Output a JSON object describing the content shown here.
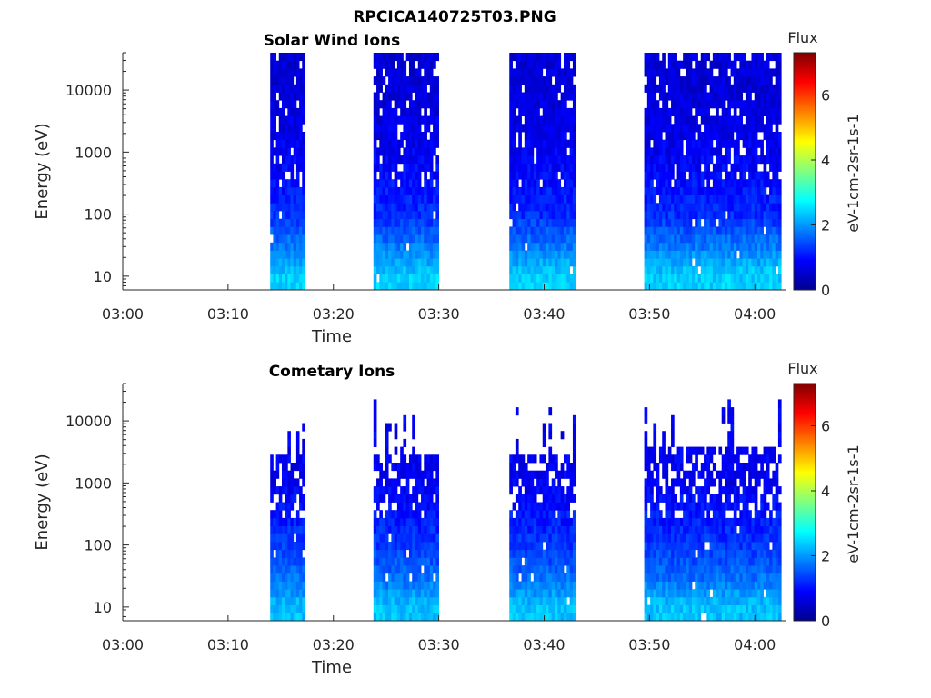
{
  "figure": {
    "title": "RPCICA140725T03.PNG"
  },
  "colors": {
    "jet_stops": [
      "#00008f",
      "#0000ff",
      "#0080ff",
      "#00ffff",
      "#80ff80",
      "#ffff00",
      "#ff8000",
      "#ff0000",
      "#800000"
    ],
    "axis": "#262626",
    "background": "#ffffff"
  },
  "chart_data": [
    {
      "type": "heatmap",
      "title": "Solar Wind Ions",
      "xlabel": "Time",
      "ylabel": "Energy (eV)",
      "x_ticks": [
        "03:00",
        "03:10",
        "03:20",
        "03:30",
        "03:40",
        "03:50",
        "04:00"
      ],
      "xlim_minutes_after_0300": [
        0,
        63
      ],
      "y_scale": "log",
      "y_ticks": [
        "10",
        "100",
        "1000",
        "10000"
      ],
      "ylim": [
        6,
        40000
      ],
      "colorbar": {
        "label_top": "Flux",
        "label": "eV-1cm-2sr-1s-1",
        "range": [
          0,
          7.3
        ],
        "ticks": [
          "0",
          "2",
          "4",
          "6"
        ]
      },
      "data_intervals_minutes": [
        [
          14.0,
          17.3
        ],
        [
          23.8,
          30.0
        ],
        [
          36.7,
          43.0
        ],
        [
          49.5,
          62.5
        ]
      ],
      "flux_profile_by_energy": [
        {
          "energy_eV": 10,
          "flux": 2.4
        },
        {
          "energy_eV": 30,
          "flux": 1.8
        },
        {
          "energy_eV": 100,
          "flux": 1.2
        },
        {
          "energy_eV": 1000,
          "flux": 0.8
        },
        {
          "energy_eV": 10000,
          "flux": 0.6
        }
      ]
    },
    {
      "type": "heatmap",
      "title": "Cometary Ions",
      "xlabel": "Time",
      "ylabel": "Energy (eV)",
      "x_ticks": [
        "03:00",
        "03:10",
        "03:20",
        "03:30",
        "03:40",
        "03:50",
        "04:00"
      ],
      "xlim_minutes_after_0300": [
        0,
        63
      ],
      "y_scale": "log",
      "y_ticks": [
        "10",
        "100",
        "1000",
        "10000"
      ],
      "ylim": [
        6,
        40000
      ],
      "colorbar": {
        "label_top": "Flux",
        "label": "eV-1cm-2sr-1s-1",
        "range": [
          0,
          7.3
        ],
        "ticks": [
          "0",
          "2",
          "4",
          "6"
        ]
      },
      "data_intervals_minutes": [
        [
          14.0,
          17.3
        ],
        [
          23.8,
          30.0
        ],
        [
          36.7,
          43.0
        ],
        [
          49.5,
          62.5
        ]
      ],
      "upper_energy_cutoff_eV": [
        3000,
        3000,
        3000,
        4000
      ],
      "flux_profile_by_energy": [
        {
          "energy_eV": 10,
          "flux": 2.3
        },
        {
          "energy_eV": 30,
          "flux": 1.7
        },
        {
          "energy_eV": 100,
          "flux": 1.3
        },
        {
          "energy_eV": 1000,
          "flux": 0.8
        }
      ]
    }
  ]
}
